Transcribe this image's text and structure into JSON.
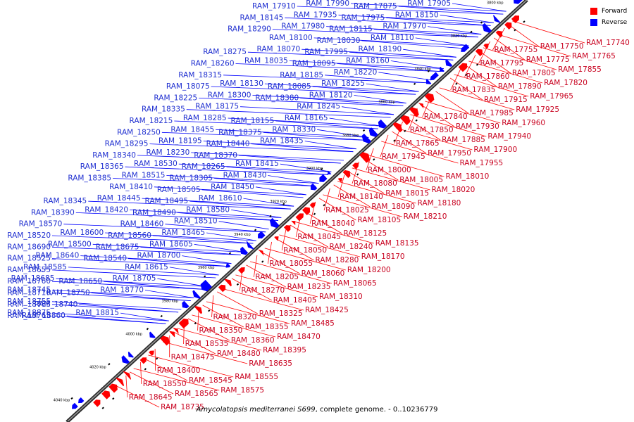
{
  "legend": {
    "forward_label": "Forward",
    "reverse_label": "Reverse",
    "forward_color": "#ff0000",
    "reverse_color": "#0000ff"
  },
  "caption": {
    "organism": "Amycolatopsis mediterranei S699",
    "rest": ", complete genome. - 0..10236779"
  },
  "ticks": [
    "3800 kbp",
    "3820 kbp",
    "3840 kbp",
    "3860 kbp",
    "3880 kbp",
    "3900 kbp",
    "3920 kbp",
    "3940 kbp",
    "3960 kbp",
    "3980 kbp",
    "4000 kbp",
    "4020 kbp",
    "4040 kbp"
  ],
  "reverse_labels": [
    "RAM_17905",
    "RAM_17875",
    "RAM_17990",
    "RAM_17910",
    "RAM_18150",
    "RAM_17975",
    "RAM_17935",
    "RAM_18145",
    "RAM_17970",
    "RAM_18115",
    "RAM_17980",
    "RAM_18290",
    "RAM_18110",
    "RAM_18030",
    "RAM_18100",
    "RAM_18275",
    "RAM_18190",
    "RAM_17995",
    "RAM_18070",
    "RAM_18260",
    "RAM_18160",
    "RAM_18095",
    "RAM_18035",
    "RAM_18315",
    "RAM_18220",
    "RAM_18185",
    "RAM_18130",
    "RAM_18075",
    "RAM_18255",
    "RAM_18085",
    "RAM_18300",
    "RAM_18225",
    "RAM_18120",
    "RAM_18380",
    "RAM_18175",
    "RAM_18335",
    "RAM_18245",
    "RAM_18155",
    "RAM_18285",
    "RAM_18215",
    "RAM_18165",
    "RAM_18375",
    "RAM_18455",
    "RAM_18250",
    "RAM_18330",
    "RAM_18440",
    "RAM_18195",
    "RAM_18295",
    "RAM_18435",
    "RAM_18370",
    "RAM_18230",
    "RAM_18340",
    "RAM_18415",
    "RAM_18265",
    "RAM_18530",
    "RAM_18365",
    "RAM_18430",
    "RAM_18305",
    "RAM_18515",
    "RAM_18385",
    "RAM_18450",
    "RAM_18505",
    "RAM_18410",
    "RAM_18345",
    "RAM_18610",
    "RAM_18495",
    "RAM_18445",
    "RAM_18390",
    "RAM_18580",
    "RAM_18490",
    "RAM_18420",
    "RAM_18570",
    "RAM_18510",
    "RAM_18460",
    "RAM_18600",
    "RAM_18520",
    "RAM_18465",
    "RAM_18560",
    "RAM_18500",
    "RAM_18690",
    "RAM_18605",
    "RAM_18675",
    "RAM_18640",
    "RAM_18525",
    "RAM_18700",
    "RAM_18540",
    "RAM_18585",
    "RAM_18655",
    "RAM_18615",
    "RAM_18650",
    "RAM_18685",
    "RAM_18760",
    "RAM_18705",
    "RAM_18750",
    "RAM_18745",
    "RAM_18710",
    "RAM_18770",
    "RAM_18740",
    "RAM_18755",
    "RAM_18785",
    "RAM_18815",
    "RAM_18860",
    "RAM_18875",
    "RAM_18765"
  ],
  "forward_labels": [
    "RAM_17740",
    "RAM_17750",
    "RAM_17755",
    "RAM_17765",
    "RAM_17775",
    "RAM_17795",
    "RAM_17855",
    "RAM_17805",
    "RAM_17860",
    "RAM_17820",
    "RAM_17890",
    "RAM_17835",
    "RAM_17965",
    "RAM_17915",
    "RAM_17840",
    "RAM_17925",
    "RAM_17985",
    "RAM_17850",
    "RAM_17960",
    "RAM_17930",
    "RAM_17865",
    "RAM_17940",
    "RAM_17885",
    "RAM_17945",
    "RAM_17900",
    "RAM_17950",
    "RAM_18000",
    "RAM_17955",
    "RAM_18005",
    "RAM_18080",
    "RAM_18010",
    "RAM_18015",
    "RAM_18140",
    "RAM_18020",
    "RAM_18090",
    "RAM_18025",
    "RAM_18180",
    "RAM_18105",
    "RAM_18040",
    "RAM_18210",
    "RAM_18125",
    "RAM_18045",
    "RAM_18135",
    "RAM_18240",
    "RAM_18050",
    "RAM_18170",
    "RAM_18280",
    "RAM_18055",
    "RAM_18200",
    "RAM_18060",
    "RAM_18205",
    "RAM_18065",
    "RAM_18235",
    "RAM_18270",
    "RAM_18310",
    "RAM_18405",
    "RAM_18320",
    "RAM_18425",
    "RAM_18325",
    "RAM_18350",
    "RAM_18485",
    "RAM_18355",
    "RAM_18535",
    "RAM_18470",
    "RAM_18360",
    "RAM_18475",
    "RAM_18395",
    "RAM_18480",
    "RAM_18400",
    "RAM_18635",
    "RAM_18545",
    "RAM_18550",
    "RAM_18555",
    "RAM_18565",
    "RAM_18645",
    "RAM_18575",
    "RAM_18735"
  ]
}
